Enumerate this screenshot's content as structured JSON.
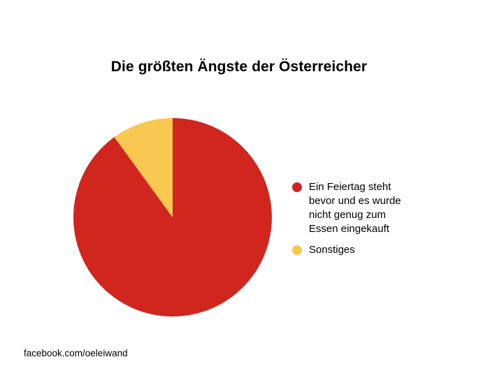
{
  "chart_data": {
    "type": "pie",
    "title": "Die größten Ängste der Österreicher",
    "slices": [
      {
        "label": "Ein Feiertag steht bevor und es wurde nicht genug zum Essen eingekauft",
        "value": 90,
        "color": "#d0261e"
      },
      {
        "label": "Sonstiges",
        "value": 10,
        "color": "#f8c850"
      }
    ],
    "legend_position": "right"
  },
  "legend": {
    "lines_item_0": [
      "Ein Feiertag steht",
      "bevor und es wurde",
      "nicht genug zum",
      "Essen eingekauft"
    ],
    "item_1": "Sonstiges"
  },
  "footer": {
    "credit": "facebook.com/oeleiwand"
  }
}
